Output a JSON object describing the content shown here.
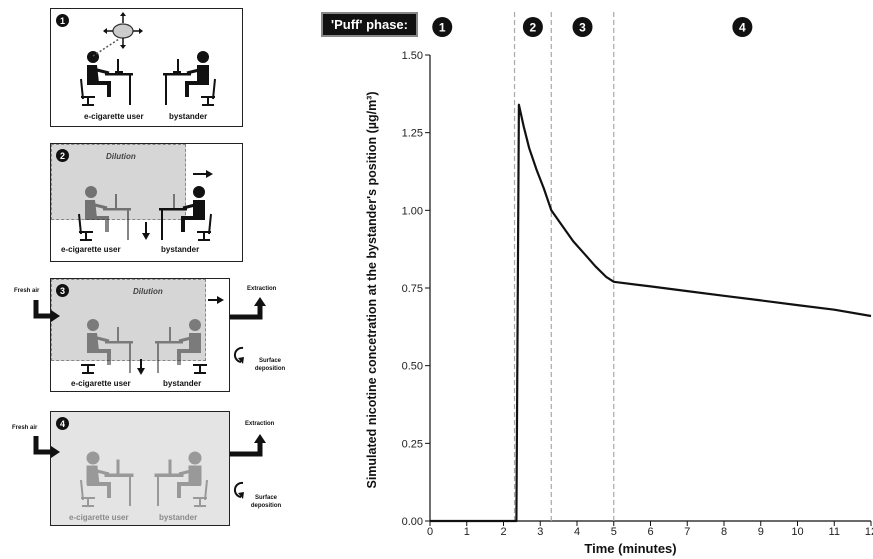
{
  "panels": [
    {
      "num": "1",
      "user_label": "e-cigarette user",
      "bystander_label": "bystander"
    },
    {
      "num": "2",
      "title": "Dilution",
      "user_label": "e-cigarette user",
      "bystander_label": "bystander"
    },
    {
      "num": "3",
      "title": "Dilution",
      "user_label": "e-cigarette user",
      "bystander_label": "bystander",
      "fresh_air": "Fresh air",
      "extraction": "Extraction",
      "surface": "Surface deposition"
    },
    {
      "num": "4",
      "user_label": "e-cigarette user",
      "bystander_label": "bystander",
      "fresh_air": "Fresh air",
      "extraction": "Extraction",
      "surface": "Surface deposition"
    }
  ],
  "colors": {
    "ink": "#111111",
    "grid_dash": "#a8a8a8",
    "panel_gray": "#e4e4e4",
    "dim_figure": "#999999"
  },
  "icons": [
    "aerosol-cloud-icon",
    "person-at-desk-icon",
    "arrow-right-icon",
    "arrow-down-icon",
    "curved-arrow-icon",
    "elbow-arrow-icon"
  ],
  "chart_data": {
    "type": "line",
    "phase_label": "'Puff' phase:",
    "phases": [
      {
        "label": "1",
        "x_from": 0,
        "x_to": 2.3
      },
      {
        "label": "2",
        "x_from": 2.3,
        "x_to": 3.3
      },
      {
        "label": "3",
        "x_from": 3.3,
        "x_to": 5
      },
      {
        "label": "4",
        "x_from": 5,
        "x_to": 12
      }
    ],
    "phase_boundaries": [
      2.3,
      3.3,
      5
    ],
    "xlabel": "Time (minutes)",
    "ylabel": "Simulated nicotine concetration at the bystander's position (µg/m³)",
    "xlim": [
      0,
      12
    ],
    "ylim": [
      0,
      1.5
    ],
    "xticks": [
      "0",
      "1",
      "2",
      "3",
      "4",
      "5",
      "6",
      "7",
      "8",
      "9",
      "10",
      "11",
      "12"
    ],
    "yticks": [
      "0.00",
      "0.25",
      "0.50",
      "0.75",
      "1.00",
      "1.25",
      "1.50"
    ],
    "series": [
      {
        "x": [
          0,
          2.35,
          2.42,
          2.55,
          2.7,
          2.9,
          3.1,
          3.3,
          3.6,
          3.9,
          4.2,
          4.5,
          4.8,
          5.0,
          6,
          7,
          8,
          9,
          10,
          11,
          12
        ],
        "y": [
          0,
          0,
          1.34,
          1.27,
          1.2,
          1.13,
          1.07,
          1.0,
          0.95,
          0.9,
          0.86,
          0.82,
          0.785,
          0.77,
          0.755,
          0.74,
          0.725,
          0.71,
          0.695,
          0.68,
          0.66
        ]
      }
    ]
  }
}
